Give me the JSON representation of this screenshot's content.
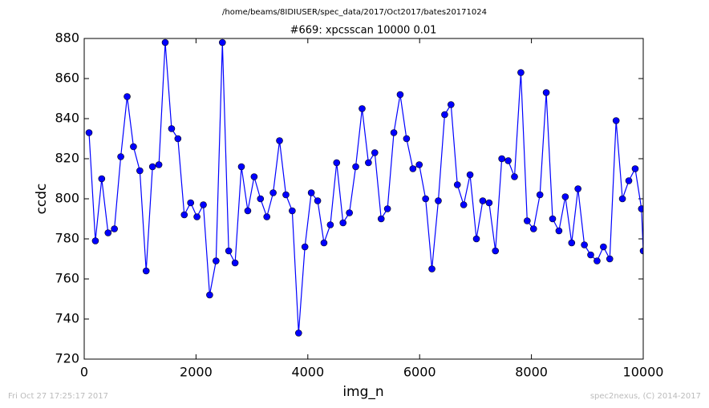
{
  "chart_data": {
    "type": "line",
    "suptitle": "/home/beams/8IDIUSER/spec_data/2017/Oct2017/bates20171024",
    "title": "#669: xpcsscan 10000 0.01",
    "xlabel": "img_n",
    "ylabel": "ccdc",
    "footer_left": "Fri Oct 27 17:25:17 2017",
    "footer_right": "spec2nexus, (C) 2014-2017",
    "xlim": [
      0,
      10000
    ],
    "xticks": [
      0,
      2000,
      4000,
      6000,
      8000,
      10000
    ],
    "ylim": [
      720,
      880
    ],
    "yticks": [
      720,
      740,
      760,
      780,
      800,
      820,
      840,
      860,
      880
    ],
    "x": [
      86,
      200,
      313,
      427,
      540,
      654,
      768,
      881,
      995,
      1108,
      1222,
      1336,
      1449,
      1563,
      1676,
      1790,
      1904,
      2017,
      2131,
      2244,
      2358,
      2472,
      2585,
      2699,
      2812,
      2926,
      3040,
      3153,
      3267,
      3380,
      3494,
      3608,
      3721,
      3835,
      3948,
      4062,
      4176,
      4289,
      4403,
      4516,
      4630,
      4744,
      4857,
      4971,
      5084,
      5198,
      5312,
      5425,
      5539,
      5652,
      5766,
      5880,
      5993,
      6107,
      6220,
      6334,
      6448,
      6561,
      6675,
      6788,
      6902,
      7016,
      7129,
      7243,
      7356,
      7470,
      7584,
      7697,
      7811,
      7924,
      8038,
      8152,
      8265,
      8379,
      8492,
      8606,
      8720,
      8833,
      8947,
      9060,
      9174,
      9288,
      9401,
      9515,
      9628,
      9742,
      9856,
      9969,
      10000
    ],
    "series": [
      {
        "color": "#0000ff",
        "values": [
          833,
          779,
          810,
          783,
          785,
          821,
          851,
          826,
          814,
          764,
          816,
          817,
          878,
          835,
          830,
          792,
          798,
          791,
          797,
          752,
          769,
          878,
          774,
          768,
          816,
          794,
          811,
          800,
          791,
          803,
          829,
          802,
          794,
          733,
          776,
          803,
          799,
          778,
          787,
          818,
          788,
          793,
          816,
          845,
          818,
          823,
          790,
          795,
          833,
          852,
          830,
          815,
          817,
          800,
          765,
          799,
          842,
          847,
          807,
          797,
          812,
          780,
          799,
          798,
          774,
          820,
          819,
          811,
          863,
          789,
          785,
          802,
          853,
          790,
          784,
          801,
          778,
          805,
          777,
          772,
          769,
          776,
          770,
          839,
          800,
          809,
          815,
          795,
          774
        ]
      }
    ]
  }
}
